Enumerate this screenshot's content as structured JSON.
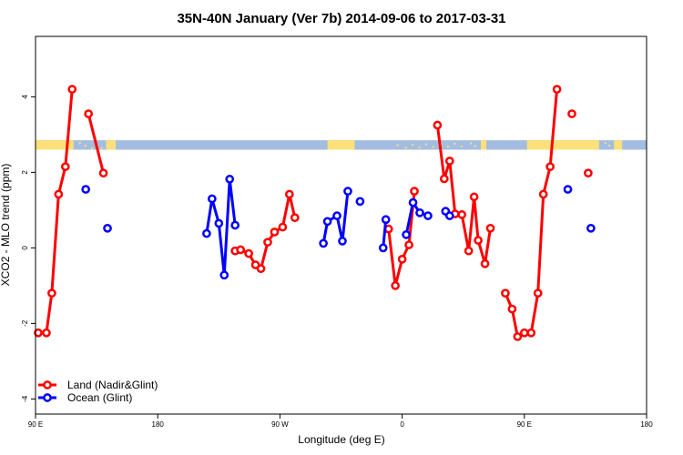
{
  "chart_data": {
    "type": "line",
    "title": "35N-40N January (Ver 7b)   2014-09-06 to 2017-03-31",
    "xlabel": "Longitude (deg E)",
    "ylabel": "XCO2 - MLO trend (ppm)",
    "xlim": [
      90,
      540
    ],
    "ylim": [
      -4.4,
      5.6
    ],
    "x_ticks": [
      {
        "value": 90,
        "label": "90 E"
      },
      {
        "value": 180,
        "label": "180"
      },
      {
        "value": 270,
        "label": "90 W"
      },
      {
        "value": 360,
        "label": "0"
      },
      {
        "value": 450,
        "label": "90 E"
      },
      {
        "value": 540,
        "label": "180"
      }
    ],
    "y_ticks": [
      {
        "value": -4,
        "label": "-4"
      },
      {
        "value": -2,
        "label": "-2"
      },
      {
        "value": 0,
        "label": "0"
      },
      {
        "value": 2,
        "label": "2"
      },
      {
        "value": 4,
        "label": "4"
      }
    ],
    "legend": {
      "position": "bottom-left",
      "entries": [
        {
          "label": "Land (Nadir&Glint)",
          "color": "#ff0000"
        },
        {
          "label": "Ocean (Glint)",
          "color": "#0000ff"
        }
      ]
    },
    "land_mask_band": {
      "y_range": [
        2.6,
        2.85
      ],
      "ocean_color": "#a3bde0",
      "land_color": "#fde07a",
      "land_segments": [
        [
          90,
          118
        ],
        [
          142,
          149
        ],
        [
          305,
          325
        ],
        [
          418,
          422
        ],
        [
          452,
          505
        ],
        [
          516,
          522
        ]
      ],
      "stipples": [
        122,
        126,
        131,
        135,
        138,
        356,
        362,
        367,
        372,
        377,
        382,
        388,
        393,
        398,
        403,
        410,
        413,
        509,
        512
      ]
    },
    "series": [
      {
        "name": "Land (Nadir&Glint)",
        "color": "#ff0000",
        "segments": [
          [
            [
              92,
              -2.25
            ],
            [
              98,
              -2.25
            ],
            [
              102,
              -1.2
            ],
            [
              107,
              1.42
            ],
            [
              112,
              2.15
            ],
            [
              117,
              4.2
            ]
          ],
          [
            [
              129,
              3.55
            ],
            [
              140,
              1.98
            ]
          ],
          [
            [
              237,
              -0.08
            ],
            [
              241,
              -0.05
            ],
            [
              247,
              -0.15
            ],
            [
              252,
              -0.45
            ],
            [
              256,
              -0.55
            ],
            [
              261,
              0.15
            ],
            [
              266,
              0.42
            ],
            [
              272,
              0.55
            ],
            [
              277,
              1.42
            ],
            [
              281,
              0.8
            ]
          ],
          [
            [
              350,
              0.5
            ],
            [
              355,
              -1.0
            ],
            [
              360,
              -0.3
            ],
            [
              365,
              0.08
            ],
            [
              369,
              1.5
            ]
          ],
          [
            [
              386,
              3.25
            ],
            [
              391,
              1.83
            ],
            [
              395,
              2.3
            ],
            [
              399,
              0.9
            ],
            [
              404,
              0.88
            ],
            [
              409,
              -0.08
            ],
            [
              413,
              1.35
            ],
            [
              416,
              0.2
            ],
            [
              421,
              -0.42
            ],
            [
              425,
              0.52
            ]
          ],
          [
            [
              436,
              -1.2
            ],
            [
              441,
              -1.62
            ],
            [
              445,
              -2.35
            ],
            [
              450,
              -2.25
            ],
            [
              455,
              -2.25
            ],
            [
              460,
              -1.2
            ],
            [
              464,
              1.42
            ],
            [
              469,
              2.15
            ],
            [
              474,
              4.2
            ]
          ],
          [
            [
              485,
              3.55
            ]
          ],
          [
            [
              497,
              1.98
            ]
          ]
        ]
      },
      {
        "name": "Ocean (Glint)",
        "color": "#0000ff",
        "segments": [
          [
            [
              127,
              1.55
            ]
          ],
          [
            [
              143,
              0.52
            ]
          ],
          [
            [
              216,
              0.38
            ],
            [
              220,
              1.3
            ],
            [
              225,
              0.65
            ],
            [
              229,
              -0.72
            ],
            [
              233,
              1.82
            ],
            [
              237,
              0.6
            ]
          ],
          [
            [
              302,
              0.12
            ],
            [
              305,
              0.7
            ],
            [
              312,
              0.85
            ],
            [
              316,
              0.18
            ],
            [
              320,
              1.5
            ]
          ],
          [
            [
              329,
              1.23
            ]
          ],
          [
            [
              346,
              0.0
            ],
            [
              348,
              0.75
            ]
          ],
          [
            [
              363,
              0.35
            ],
            [
              368,
              1.2
            ],
            [
              373,
              0.93
            ],
            [
              379,
              0.85
            ]
          ],
          [
            [
              392,
              0.97
            ],
            [
              395,
              0.85
            ]
          ],
          [
            [
              482,
              1.55
            ]
          ],
          [
            [
              499,
              0.52
            ]
          ]
        ]
      }
    ]
  }
}
